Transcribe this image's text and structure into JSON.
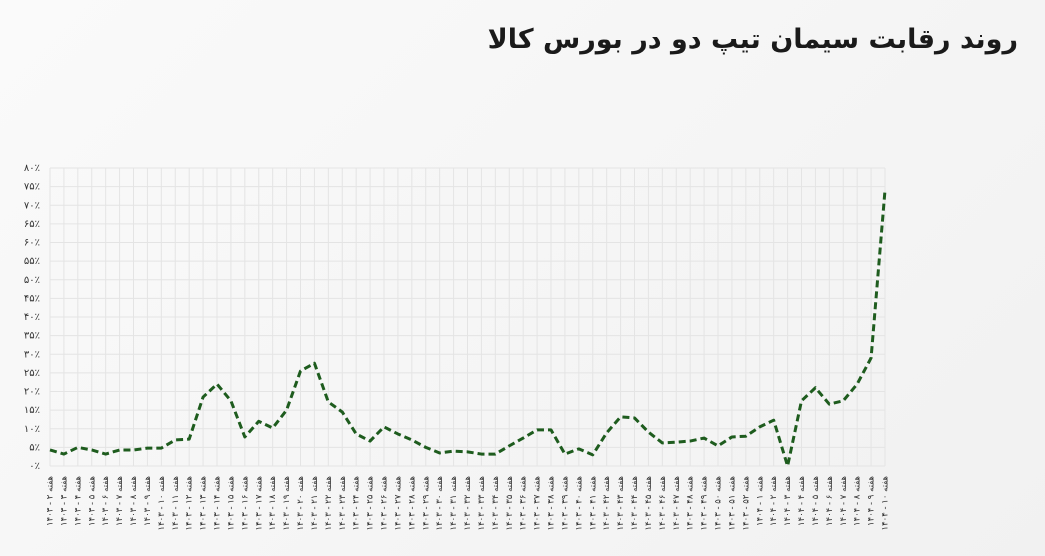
{
  "chart_data": {
    "type": "line",
    "title": "روند رقابت سیمان تیپ دو در بورس کالا",
    "categories": [
      "هفته ۲ - ۱۴۰۳",
      "هفته ۳ - ۱۴۰۳",
      "هفته ۴ - ۱۴۰۳",
      "هفته ۵ - ۱۴۰۳",
      "هفته ۶ - ۱۴۰۳",
      "هفته ۷ - ۱۴۰۳",
      "هفته ۸ - ۱۴۰۳",
      "هفته ۹ - ۱۴۰۳",
      "هفته ۱۰ - ۱۴۰۳",
      "هفته ۱۱ - ۱۴۰۳",
      "هفته ۱۲ - ۱۴۰۳",
      "هفته ۱۳ - ۱۴۰۳",
      "هفته ۱۴ - ۱۴۰۳",
      "هفته ۱۵ - ۱۴۰۳",
      "هفته ۱۶ - ۱۴۰۳",
      "هفته ۱۷ - ۱۴۰۳",
      "هفته ۱۸ - ۱۴۰۳",
      "هفته ۱۹ - ۱۴۰۳",
      "هفته ۲۰ - ۱۴۰۳",
      "هفته ۲۱ - ۱۴۰۳",
      "هفته ۲۲ - ۱۴۰۳",
      "هفته ۲۳ - ۱۴۰۳",
      "هفته ۲۴ - ۱۴۰۳",
      "هفته ۲۵ - ۱۴۰۳",
      "هفته ۲۶ - ۱۴۰۳",
      "هفته ۲۷ - ۱۴۰۳",
      "هفته ۲۸ - ۱۴۰۳",
      "هفته ۲۹ - ۱۴۰۳",
      "هفته ۳۰ - ۱۴۰۳",
      "هفته ۳۱ - ۱۴۰۳",
      "هفته ۳۲ - ۱۴۰۳",
      "هفته ۳۳ - ۱۴۰۳",
      "هفته ۳۴ - ۱۴۰۳",
      "هفته ۳۵ - ۱۴۰۳",
      "هفته ۳۶ - ۱۴۰۳",
      "هفته ۳۷ - ۱۴۰۳",
      "هفته ۳۸ - ۱۴۰۳",
      "هفته ۳۹ - ۱۴۰۳",
      "هفته ۴۰ - ۱۴۰۳",
      "هفته ۴۱ - ۱۴۰۳",
      "هفته ۴۲ - ۱۴۰۳",
      "هفته ۴۳ - ۱۴۰۳",
      "هفته ۴۴ - ۱۴۰۳",
      "هفته ۴۵ - ۱۴۰۳",
      "هفته ۴۶ - ۱۴۰۳",
      "هفته ۴۷ - ۱۴۰۳",
      "هفته ۴۸ - ۱۴۰۳",
      "هفته ۴۹ - ۱۴۰۳",
      "هفته ۵۰ - ۱۴۰۳",
      "هفته ۵۱ - ۱۴۰۳",
      "هفته ۵۲ - ۱۴۰۳",
      "هفته ۱ - ۱۴۰۴",
      "هفته ۲ - ۱۴۰۴",
      "هفته ۳ - ۱۴۰۴",
      "هفته ۴ - ۱۴۰۴",
      "هفته ۵ - ۱۴۰۴",
      "هفته ۶ - ۱۴۰۴",
      "هفته ۷ - ۱۴۰۴",
      "هفته ۸ - ۱۴۰۴",
      "هفته ۹ - ۱۴۰۴",
      "هفته ۱۰ - ۱۴۰۴"
    ],
    "values": [
      4.3,
      3.2,
      5,
      4.3,
      3.2,
      4.3,
      4.3,
      4.8,
      4.8,
      7,
      7.2,
      18.5,
      22,
      17.5,
      7.8,
      12,
      10.2,
      15,
      25.5,
      27.6,
      17.2,
      14.5,
      8.6,
      6.7,
      10.5,
      8.6,
      7,
      5,
      3.5,
      4,
      3.8,
      3.2,
      3.2,
      5.4,
      7.5,
      9.7,
      9.7,
      3.2,
      4.6,
      3,
      8.9,
      13.2,
      12.9,
      9.1,
      6.2,
      6.4,
      6.7,
      7.5,
      5.4,
      7.8,
      8,
      10.5,
      12.3,
      0,
      17.5,
      21,
      16.6,
      17.5,
      22,
      29,
      74
    ],
    "color": "#1e5c1e",
    "ylim": [
      0,
      80
    ],
    "yticks": [
      {
        "value": 0,
        "label": "۰٪"
      },
      {
        "value": 5,
        "label": "۵٪"
      },
      {
        "value": 10,
        "label": "۱۰٪"
      },
      {
        "value": 15,
        "label": "۱۵٪"
      },
      {
        "value": 20,
        "label": "۲۰٪"
      },
      {
        "value": 25,
        "label": "۲۵٪"
      },
      {
        "value": 30,
        "label": "۳۰٪"
      },
      {
        "value": 35,
        "label": "۳۵٪"
      },
      {
        "value": 40,
        "label": "۴۰٪"
      },
      {
        "value": 45,
        "label": "۴۵٪"
      },
      {
        "value": 50,
        "label": "۵۰٪"
      },
      {
        "value": 55,
        "label": "۵۵٪"
      },
      {
        "value": 60,
        "label": "۶۰٪"
      },
      {
        "value": 65,
        "label": "۶۵٪"
      },
      {
        "value": 70,
        "label": "۷۰٪"
      },
      {
        "value": 75,
        "label": "۷۵٪"
      },
      {
        "value": 80,
        "label": "۸۰٪"
      }
    ],
    "grid": true
  }
}
